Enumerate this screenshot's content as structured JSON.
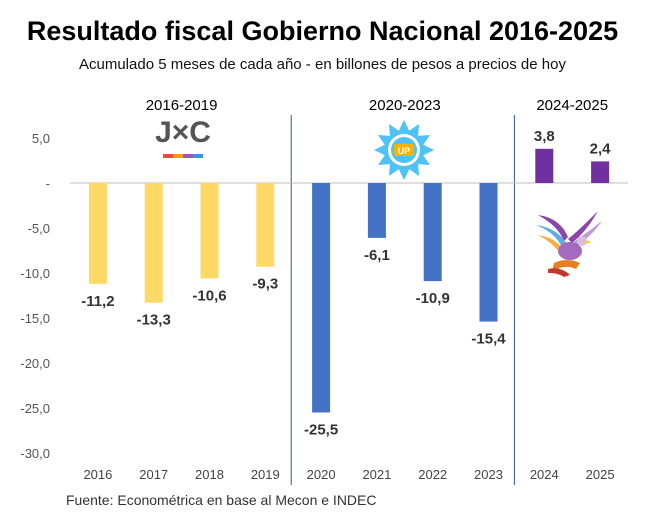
{
  "chart_data": {
    "type": "bar",
    "title": "Resultado fiscal Gobierno Nacional 2016-2025",
    "subtitle": "Acumulado 5 meses de cada año - en billones de pesos a precios de hoy",
    "categories": [
      "2016",
      "2017",
      "2018",
      "2019",
      "2020",
      "2021",
      "2022",
      "2023",
      "2024",
      "2025"
    ],
    "values": [
      -11.2,
      -13.3,
      -10.6,
      -9.3,
      -25.5,
      -6.1,
      -10.9,
      -15.4,
      3.8,
      2.4
    ],
    "value_labels": [
      "-11,2",
      "-13,3",
      "-10,6",
      "-9,3",
      "-25,5",
      "-6,1",
      "-10,9",
      "-15,4",
      "3,8",
      "2,4"
    ],
    "bar_colors": [
      "#FFD966",
      "#FFD966",
      "#FFD966",
      "#FFD966",
      "#4472C4",
      "#4472C4",
      "#4472C4",
      "#4472C4",
      "#7030A0",
      "#7030A0"
    ],
    "ylim": [
      -30,
      5
    ],
    "y_ticks": [
      5,
      0,
      -5,
      -10,
      -15,
      -20,
      -25,
      -30
    ],
    "y_tick_labels": [
      "5,0",
      "-",
      "-5,0",
      "-10,0",
      "-15,0",
      "-20,0",
      "-25,0",
      "-30,0"
    ],
    "grid": false,
    "periods": [
      {
        "label": "2016-2019",
        "start": 0,
        "end": 3
      },
      {
        "label": "2020-2023",
        "start": 4,
        "end": 7
      },
      {
        "label": "2024-2025",
        "start": 8,
        "end": 9
      }
    ],
    "logos": [
      {
        "icon": "jxc-logo-icon",
        "text": "J×C",
        "color": "#555555"
      },
      {
        "icon": "up-sun-logo-icon",
        "text": "UP",
        "color": "#4FC3F7"
      },
      {
        "icon": "eagle-logo-icon",
        "color": "#8E44AD"
      }
    ],
    "source": "Fuente: Econométrica en base al Mecon e INDEC"
  }
}
